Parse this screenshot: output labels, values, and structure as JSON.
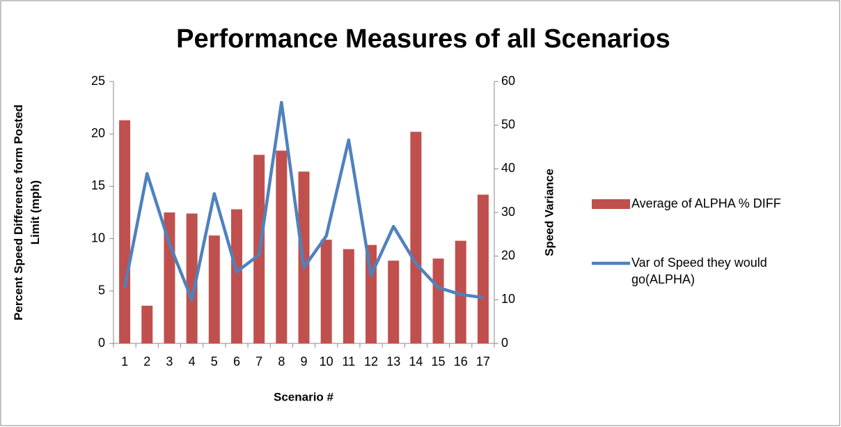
{
  "chart_data": {
    "type": "bar+line",
    "title": "Performance Measures of all Scenarios",
    "x_label": "Scenario #",
    "y_label": "Percent Speed Difference form Posted Limit (mph)",
    "y2_label": "Speed Variance",
    "categories": [
      "1",
      "2",
      "3",
      "4",
      "5",
      "6",
      "7",
      "8",
      "9",
      "10",
      "11",
      "12",
      "13",
      "14",
      "15",
      "16",
      "17"
    ],
    "series": [
      {
        "name": "Average of ALPHA % DIFF",
        "type": "bar",
        "color": "#c0504d",
        "values": [
          21.3,
          3.6,
          12.5,
          12.4,
          10.3,
          12.8,
          18.0,
          18.4,
          16.4,
          9.9,
          9.0,
          9.4,
          7.9,
          20.2,
          8.1,
          9.8,
          14.2
        ]
      },
      {
        "name": "Var of Speed they would go(ALPHA)",
        "type": "line",
        "axis": "y2",
        "color": "#4f81bd",
        "values": [
          12.8,
          38.9,
          22.8,
          10.0,
          34.3,
          16.4,
          20.3,
          55.2,
          17.4,
          24.6,
          46.6,
          15.6,
          26.8,
          18.3,
          12.8,
          11.2,
          10.5
        ]
      }
    ],
    "ylim": [
      0,
      25
    ],
    "yticks": [
      0,
      5,
      10,
      15,
      20,
      25
    ],
    "y2lim": [
      0,
      60
    ],
    "y2ticks": [
      0,
      10,
      20,
      30,
      40,
      50,
      60
    ],
    "legend": "right",
    "grid": false
  }
}
